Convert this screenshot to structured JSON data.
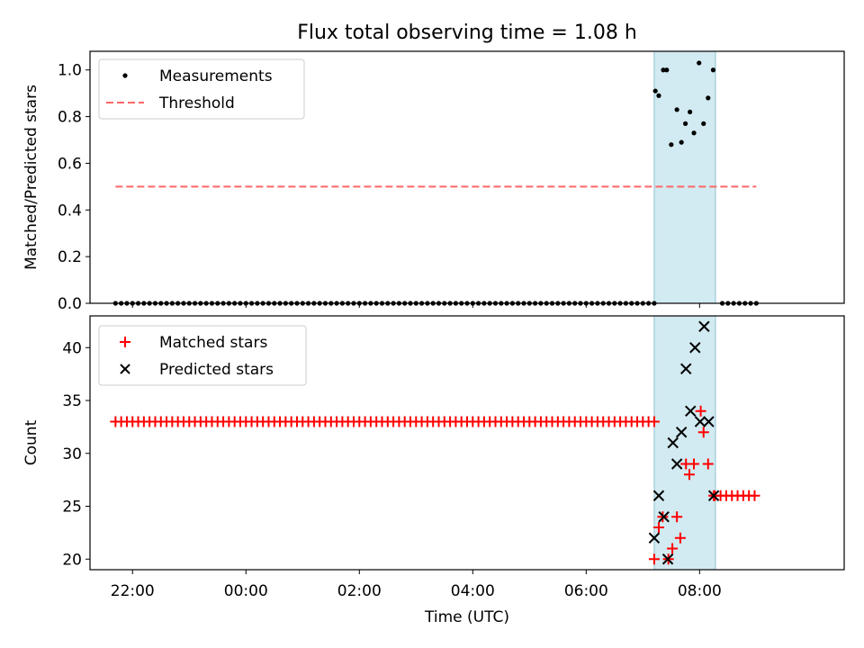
{
  "figure": {
    "title": "Flux total observing time = 1.08 h",
    "xlabel": "Time (UTC)"
  },
  "colors": {
    "band": "#add8e6",
    "threshold": "#ff6666",
    "measurement": "#000000",
    "matched": "#ff0000",
    "predicted": "#000000"
  },
  "chart_data": [
    {
      "type": "scatter",
      "ylabel": "Matched/Predicted stars",
      "xlim": [
        -2.75,
        10.55
      ],
      "ylim": [
        0.0,
        1.08
      ],
      "yticks": [
        0.0,
        0.2,
        0.4,
        0.6,
        0.8,
        1.0
      ],
      "ytick_labels": [
        "0.0",
        "0.2",
        "0.4",
        "0.6",
        "0.8",
        "1.0"
      ],
      "grid": false,
      "legend": "upper-left",
      "highlight_span": [
        7.2,
        8.28
      ],
      "threshold": {
        "name": "Threshold",
        "y": 0.5,
        "x_range": [
          -2.3,
          9.0
        ]
      },
      "measurements": {
        "name": "Measurements",
        "zero_segments": [
          {
            "x_start": -2.3,
            "x_end": 7.17,
            "step": 0.1,
            "y": 0.0
          },
          {
            "x_start": 8.4,
            "x_end": 9.0,
            "step": 0.1,
            "y": 0.0
          }
        ],
        "points": [
          [
            7.22,
            0.91
          ],
          [
            7.28,
            0.89
          ],
          [
            7.36,
            1.0
          ],
          [
            7.42,
            1.0
          ],
          [
            7.5,
            0.68
          ],
          [
            7.6,
            0.83
          ],
          [
            7.68,
            0.69
          ],
          [
            7.75,
            0.77
          ],
          [
            7.83,
            0.82
          ],
          [
            7.9,
            0.73
          ],
          [
            7.99,
            1.03
          ],
          [
            8.07,
            0.77
          ],
          [
            8.15,
            0.88
          ],
          [
            8.24,
            1.0
          ]
        ]
      }
    },
    {
      "type": "scatter",
      "ylabel": "Count",
      "xlim": [
        -2.75,
        10.55
      ],
      "ylim": [
        19,
        43
      ],
      "yticks": [
        20,
        25,
        30,
        35,
        40
      ],
      "ytick_labels": [
        "20",
        "25",
        "30",
        "35",
        "40"
      ],
      "xticks": [
        -2,
        0,
        2,
        4,
        6,
        8
      ],
      "xtick_labels": [
        "22:00",
        "00:00",
        "02:00",
        "04:00",
        "06:00",
        "08:00"
      ],
      "grid": false,
      "legend": "upper-left",
      "highlight_span": [
        7.2,
        8.28
      ],
      "matched": {
        "name": "Matched stars",
        "flat_segments": [
          {
            "x_start": -2.3,
            "x_end": 7.17,
            "step": 0.1,
            "y": 33
          },
          {
            "x_start": 8.27,
            "x_end": 9.0,
            "step": 0.1,
            "y": 26
          }
        ],
        "points": [
          [
            7.2,
            20
          ],
          [
            7.28,
            23
          ],
          [
            7.35,
            24
          ],
          [
            7.45,
            20
          ],
          [
            7.52,
            21
          ],
          [
            7.6,
            24
          ],
          [
            7.66,
            22
          ],
          [
            7.76,
            29
          ],
          [
            7.82,
            28
          ],
          [
            7.9,
            29
          ],
          [
            8.02,
            34
          ],
          [
            8.07,
            32
          ],
          [
            8.15,
            29
          ],
          [
            8.25,
            26
          ]
        ]
      },
      "predicted": {
        "name": "Predicted stars",
        "points": [
          [
            7.2,
            22
          ],
          [
            7.28,
            26
          ],
          [
            7.37,
            24
          ],
          [
            7.44,
            20
          ],
          [
            7.53,
            31
          ],
          [
            7.6,
            29
          ],
          [
            7.68,
            32
          ],
          [
            7.76,
            38
          ],
          [
            7.84,
            34
          ],
          [
            7.92,
            40
          ],
          [
            8.01,
            33
          ],
          [
            8.08,
            42
          ],
          [
            8.16,
            33
          ],
          [
            8.25,
            26
          ]
        ]
      }
    }
  ]
}
